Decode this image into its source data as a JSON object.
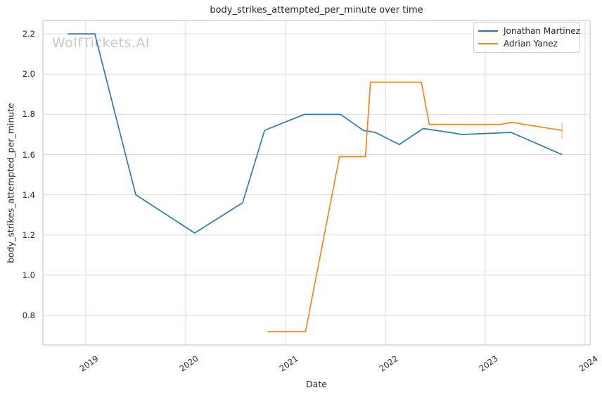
{
  "figure": {
    "watermark": "WolfTickets.AI",
    "background": "#ffffff",
    "grid_color": "#dcdcdc",
    "border_color": "#cccccc",
    "text_color": "#262626",
    "watermark_color": "#c8c8c8"
  },
  "chart_data": {
    "type": "line",
    "title": "body_strikes_attempted_per_minute over time",
    "xlabel": "Date",
    "ylabel": "body_strikes_attempted_per_minute",
    "xlim": [
      2018.57,
      2024.05
    ],
    "ylim": [
      0.653,
      2.267
    ],
    "x_ticks": [
      2019,
      2020,
      2021,
      2022,
      2023,
      2024
    ],
    "y_ticks": [
      0.8,
      1.0,
      1.2,
      1.4,
      1.6,
      1.8,
      2.0,
      2.2
    ],
    "grid": true,
    "legend_position": "upper-right",
    "series": [
      {
        "name": "Jonathan Martinez",
        "color": "#1f77b4",
        "x": [
          2018.82,
          2019.09,
          2019.5,
          2020.09,
          2020.57,
          2020.79,
          2021.19,
          2021.55,
          2021.78,
          2021.9,
          2022.14,
          2022.38,
          2022.77,
          2023.26,
          2023.77
        ],
        "y": [
          2.2,
          2.2,
          1.4,
          1.21,
          1.36,
          1.72,
          1.8,
          1.8,
          1.72,
          1.71,
          1.65,
          1.73,
          1.7,
          1.71,
          1.6
        ]
      },
      {
        "name": "Adrian Yanez",
        "color": "#ff7f0e",
        "x": [
          2020.82,
          2021.2,
          2021.54,
          2021.8,
          2021.85,
          2022.36,
          2022.44,
          2023.15,
          2023.27,
          2023.77
        ],
        "y": [
          0.72,
          0.72,
          1.59,
          1.59,
          1.96,
          1.96,
          1.75,
          1.75,
          1.76,
          1.72
        ],
        "error_bar": {
          "x": 2023.77,
          "low": 1.68,
          "high": 1.76
        }
      }
    ]
  }
}
